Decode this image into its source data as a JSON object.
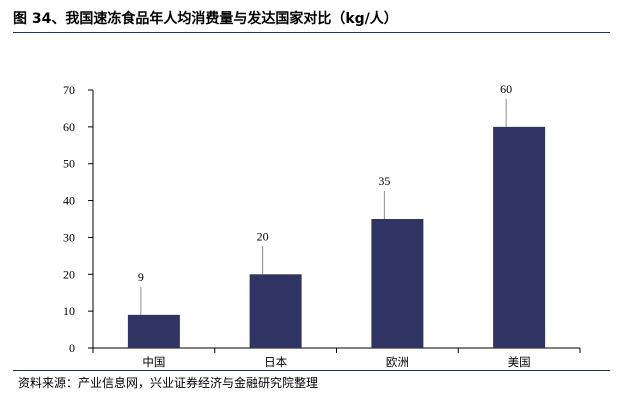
{
  "title": "图 34、我国速冻食品年人均消费量与发达国家对比（kg/人）",
  "source": "资料来源：产业信息网，兴业证券经济与金融研究院整理",
  "colors": {
    "bar": "#303463",
    "rule": "#24306b",
    "leader": "#8c8c8c"
  },
  "chart_data": {
    "type": "bar",
    "title": "图 34、我国速冻食品年人均消费量与发达国家对比（kg/人）",
    "categories": [
      "中国",
      "日本",
      "欧洲",
      "美国"
    ],
    "values": [
      9,
      20,
      35,
      60
    ],
    "data_labels": [
      "9",
      "20",
      "35",
      "60"
    ],
    "yticks": [
      0,
      10,
      20,
      30,
      40,
      50,
      60,
      70
    ],
    "ylim": [
      0,
      70
    ],
    "xlabel": "",
    "ylabel": "",
    "grid": false,
    "legend": "none"
  }
}
